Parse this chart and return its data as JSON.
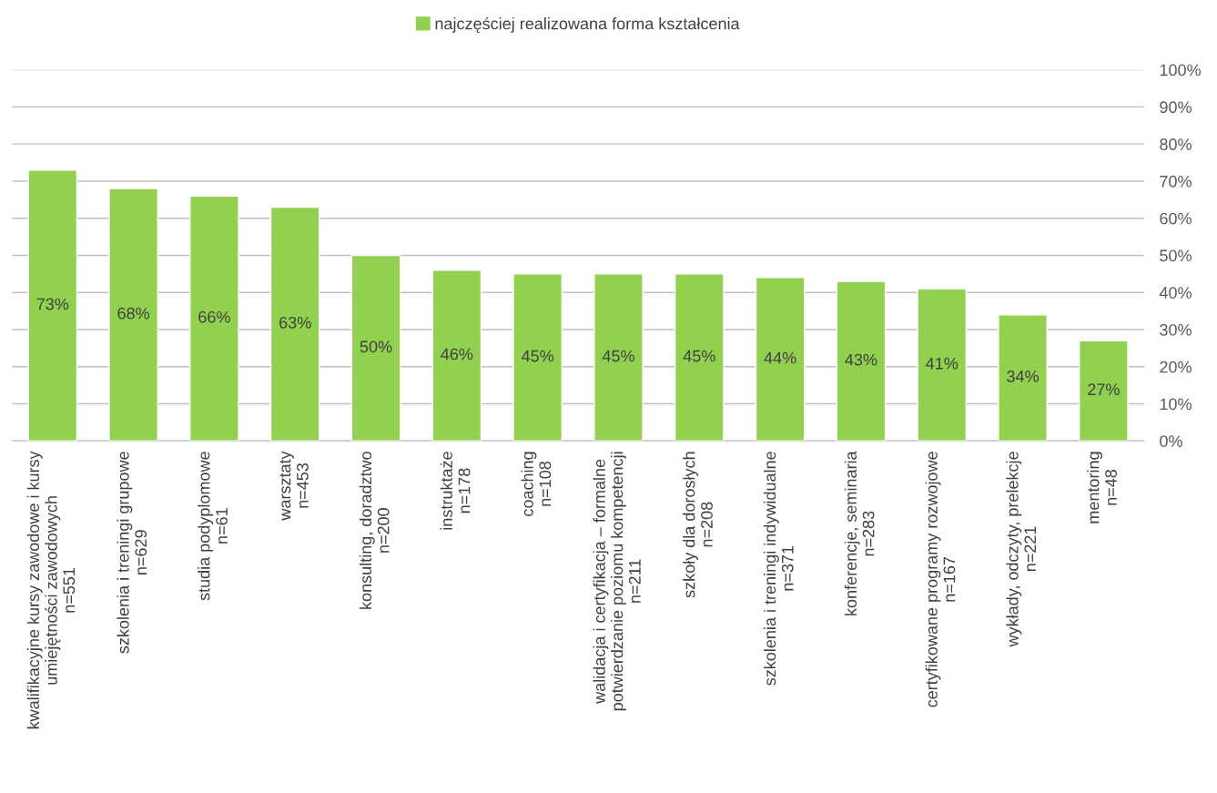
{
  "chart_data": {
    "type": "bar",
    "categories": [
      "kwalifikacyjne kursy zawodowe i kursy\numiejętności zawodowych\nn=551",
      "szkolenia i treningi grupowe\nn=629",
      "studia podyplomowe\nn=61",
      "warsztaty\nn=453",
      "konsulting, doradztwo\nn=200",
      "instruktaże\nn=178",
      "coaching\nn=108",
      "walidacja i certyfikacja – formalne\npotwierdzanie poziomu kompetencji\nn=211",
      "szkoły dla dorosłych\nn=208",
      "szkolenia i treningi indywidualne\nn=371",
      "konferencje, seminaria\nn=283",
      "certyfikowane programy rozwojowe\nn=167",
      "wykłady, odczyty, prelekcje\nn=221",
      "mentoring\nn=48"
    ],
    "series": [
      {
        "name": "najczęściej realizowana forma kształcenia",
        "color": "#92d050",
        "values": [
          73,
          68,
          66,
          63,
          50,
          46,
          45,
          45,
          45,
          44,
          43,
          41,
          34,
          27
        ],
        "value_labels": [
          "73%",
          "68%",
          "66%",
          "63%",
          "50%",
          "46%",
          "45%",
          "45%",
          "45%",
          "44%",
          "43%",
          "41%",
          "34%",
          "27%"
        ]
      }
    ],
    "ylim": [
      0,
      100
    ],
    "yticks": [
      {
        "value": 0,
        "label": "0%"
      },
      {
        "value": 10,
        "label": "10%"
      },
      {
        "value": 20,
        "label": "20%"
      },
      {
        "value": 30,
        "label": "30%"
      },
      {
        "value": 40,
        "label": "40%"
      },
      {
        "value": 50,
        "label": "50%"
      },
      {
        "value": 60,
        "label": "60%"
      },
      {
        "value": 70,
        "label": "70%"
      },
      {
        "value": 80,
        "label": "80%"
      },
      {
        "value": 90,
        "label": "90%"
      },
      {
        "value": 100,
        "label": "100%"
      }
    ],
    "grid": "y",
    "legend": "top"
  }
}
